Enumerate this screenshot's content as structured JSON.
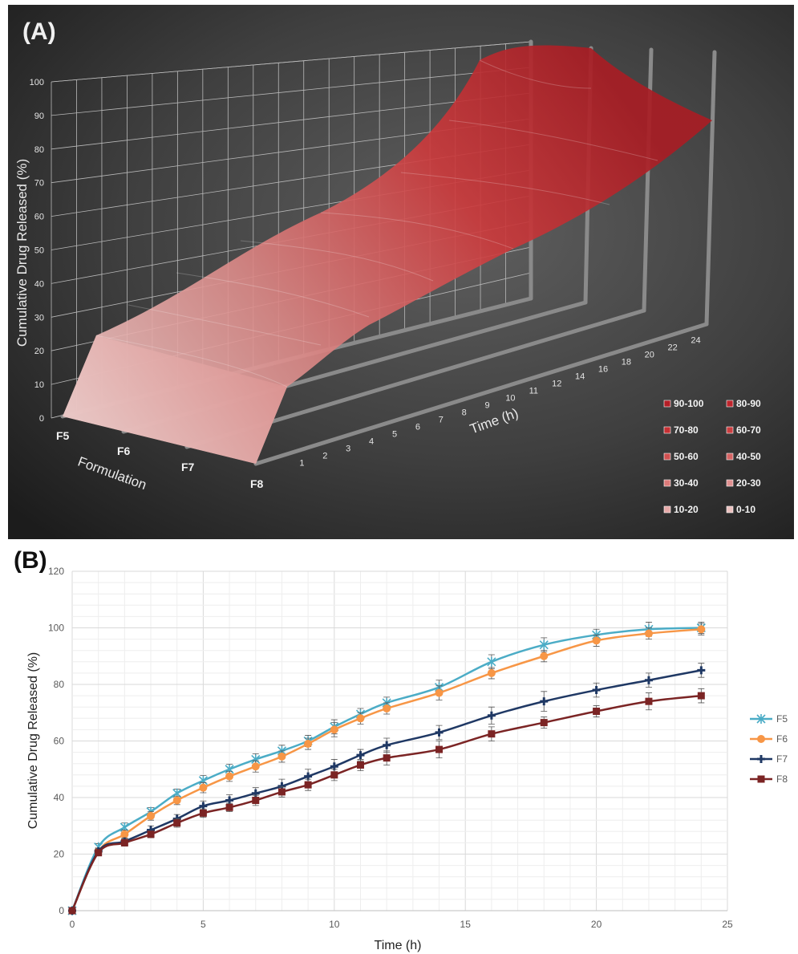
{
  "chart_data": [
    {
      "type": "surface",
      "panel_label": "(A)",
      "ylabel": "Cumulative Drug Released (%)",
      "xlabel": "Time (h)",
      "zlabel": "Formulation",
      "y_ticks": [
        "0",
        "10",
        "20",
        "30",
        "40",
        "50",
        "60",
        "70",
        "80",
        "90",
        "100"
      ],
      "x_ticks": [
        "1",
        "2",
        "3",
        "4",
        "5",
        "6",
        "7",
        "8",
        "9",
        "10",
        "11",
        "12",
        "14",
        "16",
        "18",
        "20",
        "22",
        "24"
      ],
      "categories": [
        "F5",
        "F6",
        "F7",
        "F8"
      ],
      "legend": [
        "90-100",
        "80-90",
        "70-80",
        "60-70",
        "50-60",
        "40-50",
        "30-40",
        "20-30",
        "10-20",
        "0-10"
      ],
      "legend_colors": [
        "#b51e26",
        "#bf252c",
        "#c63034",
        "#cc3f41",
        "#d15050",
        "#d66464",
        "#dc7a79",
        "#e19191",
        "#e6a9a8",
        "#ebc1bf"
      ]
    },
    {
      "type": "line",
      "panel_label": "(B)",
      "xlabel": "Time (h)",
      "ylabel": "Cumulative Drug Released (%)",
      "xlim": [
        0,
        25
      ],
      "ylim": [
        0,
        120
      ],
      "x_ticks": [
        "0",
        "5",
        "10",
        "15",
        "20",
        "25"
      ],
      "y_ticks": [
        "0",
        "20",
        "40",
        "60",
        "80",
        "100",
        "120"
      ],
      "grid": true,
      "legend_position": "right",
      "x": [
        0,
        1,
        2,
        3,
        4,
        5,
        6,
        7,
        8,
        9,
        10,
        11,
        12,
        14,
        16,
        18,
        20,
        22,
        24
      ],
      "series": [
        {
          "name": "F5",
          "color": "#4bacc6",
          "marker": "star",
          "values": [
            0,
            22.5,
            29.5,
            35,
            41.5,
            46,
            50,
            53.5,
            56.5,
            60,
            65,
            69.5,
            73.5,
            79,
            88,
            94,
            97.5,
            99.5,
            100
          ],
          "errors": [
            0,
            1.2,
            1.5,
            1.5,
            1.5,
            1.8,
            1.8,
            2,
            2,
            2,
            2.5,
            2,
            2,
            2.5,
            2.5,
            2.5,
            2,
            2.5,
            2
          ]
        },
        {
          "name": "F6",
          "color": "#f79646",
          "marker": "circle",
          "values": [
            0,
            21,
            27,
            33.5,
            39,
            43.5,
            47.5,
            51,
            54.5,
            59,
            64,
            68,
            71.5,
            77,
            84,
            90,
            95.5,
            98,
            99.5
          ],
          "errors": [
            0,
            1.2,
            1.5,
            1.5,
            1.5,
            1.8,
            1.8,
            2,
            2,
            2,
            2.5,
            2,
            2,
            2.5,
            2,
            2,
            2,
            2,
            2
          ]
        },
        {
          "name": "F7",
          "color": "#1f3864",
          "marker": "plus",
          "values": [
            0,
            21,
            24.5,
            28.5,
            32.5,
            37,
            39,
            41.5,
            44,
            47.5,
            51,
            55,
            58.5,
            63,
            69,
            74,
            78,
            81.5,
            85
          ],
          "errors": [
            0,
            1,
            1.2,
            1.5,
            1.5,
            1.8,
            2,
            2,
            2.5,
            2.5,
            2.5,
            2,
            2.5,
            2.5,
            3,
            3.5,
            2.5,
            2.5,
            2.5
          ]
        },
        {
          "name": "F8",
          "color": "#7b2424",
          "marker": "square",
          "values": [
            0,
            20.5,
            24,
            27,
            31,
            34.5,
            36.5,
            39,
            42,
            44.5,
            48,
            51.5,
            54,
            57,
            62.5,
            66.5,
            70.5,
            74,
            76
          ],
          "errors": [
            0,
            1,
            1.2,
            1.2,
            1.5,
            1.5,
            1.5,
            1.8,
            1.8,
            2,
            2,
            2,
            2.5,
            3,
            2.5,
            2,
            2,
            3,
            2.5
          ]
        }
      ]
    }
  ]
}
